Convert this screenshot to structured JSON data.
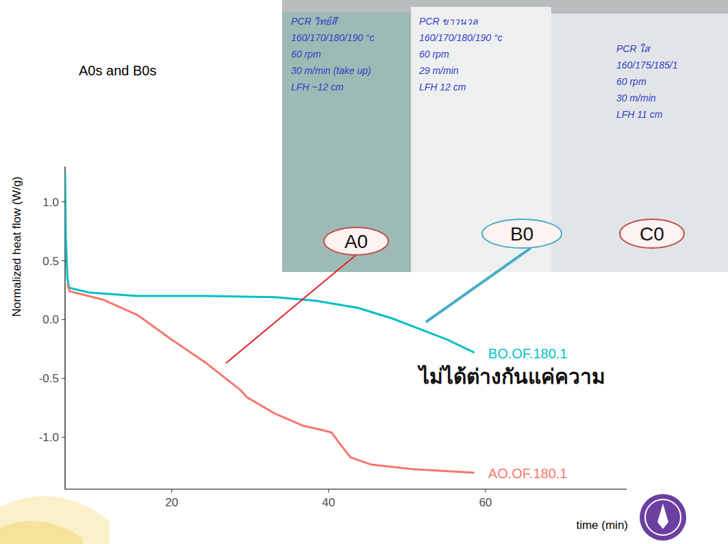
{
  "chart_data": {
    "type": "line",
    "title": "A0s and B0s",
    "y_label": "Normalized heat flow (W/g)",
    "x_label": "time (min)",
    "xlim": [
      6.4,
      78
    ],
    "ylim": [
      -1.44,
      1.3
    ],
    "xticks": [
      20,
      40,
      60
    ],
    "yticks": [
      {
        "value": 1,
        "label": "1.0"
      },
      0.5,
      {
        "value": 0,
        "label": "0.0"
      },
      -0.5,
      {
        "value": -1,
        "label": "-1.0"
      }
    ],
    "series": [
      {
        "name": "BO.OF.180.1",
        "color": "#00bfc4",
        "x": [
          6.4,
          6.5,
          6.7,
          6.9,
          9.5,
          15.6,
          24.4,
          33.2,
          38.4,
          43.7,
          48.1,
          51.6,
          55.1,
          58.6
        ],
        "values": [
          1.25,
          0.7,
          0.35,
          0.27,
          0.23,
          0.2,
          0.2,
          0.19,
          0.16,
          0.1,
          0.01,
          -0.08,
          -0.17,
          -0.28
        ]
      },
      {
        "name": "AO.OF.180.1",
        "color": "#f8766d",
        "x": [
          6.7,
          7.0,
          11.2,
          15.6,
          20,
          24.4,
          28.8,
          29.6,
          33.2,
          36.7,
          39.3,
          40.4,
          41.5,
          42.8,
          45.4,
          50.7,
          58.6
        ],
        "values": [
          0.3,
          0.24,
          0.17,
          0.04,
          -0.17,
          -0.37,
          -0.6,
          -0.66,
          -0.8,
          -0.9,
          -0.94,
          -0.96,
          -1.06,
          -1.17,
          -1.23,
          -1.27,
          -1.3
        ]
      }
    ]
  },
  "photo": {
    "samples": [
      {
        "notes": [
          "PCR วิทย์สี",
          "160/170/180/190 °c",
          "60 rpm",
          "30 m/min (take up)",
          "LFH ~12 cm"
        ]
      },
      {
        "notes": [
          "PCR ขาวนวล",
          "160/170/180/190 °c",
          "60 rpm",
          "29 m/min",
          "LFH 12 cm"
        ]
      },
      {
        "notes": [
          "PCR ใส",
          "160/175/185/1",
          "60 rpm",
          "30 m/min",
          "LFH 11 cm"
        ]
      }
    ]
  },
  "callouts": [
    "A0",
    "B0",
    "C0"
  ],
  "caption": "ไม่ได้ต่างกันแค่ความ"
}
